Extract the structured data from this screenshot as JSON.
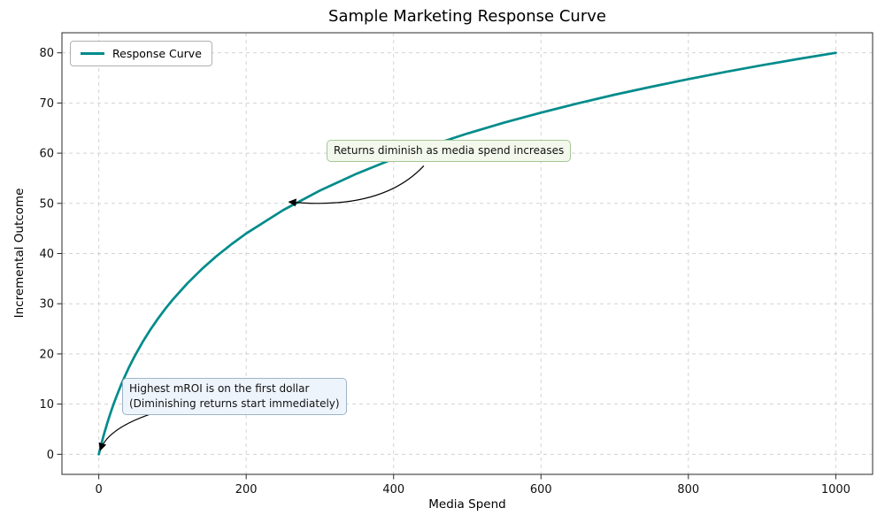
{
  "figure": {
    "title": "Sample Marketing Response Curve",
    "xlabel": "Media Spend",
    "ylabel": "Incremental Outcome"
  },
  "legend": {
    "items": [
      {
        "label": "Response Curve",
        "color": "#008b8b"
      }
    ]
  },
  "chart_data": {
    "type": "line",
    "title": "Sample Marketing Response Curve",
    "xlabel": "Media Spend",
    "ylabel": "Incremental Outcome",
    "xlim": [
      -50,
      1050
    ],
    "ylim": [
      -4,
      84
    ],
    "xticks": [
      0,
      200,
      400,
      600,
      800,
      1000
    ],
    "yticks": [
      0,
      10,
      20,
      30,
      40,
      50,
      60,
      70,
      80
    ],
    "grid": true,
    "grid_style": "dashed",
    "legend_position": "upper left",
    "series": [
      {
        "name": "Response Curve",
        "color": "#008b8b",
        "x": [
          0,
          2,
          4,
          6,
          8,
          10,
          12,
          15,
          18,
          21,
          25,
          30,
          35,
          40,
          45,
          50,
          60,
          70,
          80,
          90,
          100,
          120,
          140,
          160,
          180,
          200,
          250,
          300,
          350,
          400,
          450,
          500,
          550,
          600,
          650,
          700,
          750,
          800,
          850,
          900,
          950,
          1000
        ],
        "y": [
          0,
          1.2,
          2.34,
          3.43,
          4.48,
          5.48,
          6.44,
          7.82,
          9.12,
          10.36,
          11.92,
          13.74,
          15.44,
          17.02,
          18.51,
          19.91,
          22.5,
          24.84,
          26.98,
          28.94,
          30.76,
          34.04,
          36.93,
          39.52,
          41.86,
          44.0,
          48.64,
          52.55,
          55.92,
          58.88,
          61.52,
          63.91,
          66.08,
          68.08,
          69.93,
          71.65,
          73.25,
          74.76,
          76.18,
          77.52,
          78.79,
          80.0
        ]
      }
    ],
    "annotations": [
      {
        "id": "diminishing-returns",
        "text": "Returns diminish as media spend increases",
        "box_xy": [
          309,
          62.6
        ],
        "arrow": {
          "start": [
            441,
            57.5
          ],
          "control": [
            384,
            48.5
          ],
          "tip": [
            258,
            50.3
          ]
        },
        "bg": "#f2f9ec",
        "border": "#a6c697"
      },
      {
        "id": "highest-mroi",
        "text_lines": [
          "Highest mROI is on the first dollar",
          "(Diminishing returns start immediately)"
        ],
        "box_xy": [
          32,
          15.3
        ],
        "arrow": {
          "start": [
            74,
            8.2
          ],
          "control": [
            12,
            5.2
          ],
          "tip": [
            2,
            0.8
          ]
        },
        "bg": "#eef4fc",
        "border": "#9fb4c8"
      }
    ]
  }
}
